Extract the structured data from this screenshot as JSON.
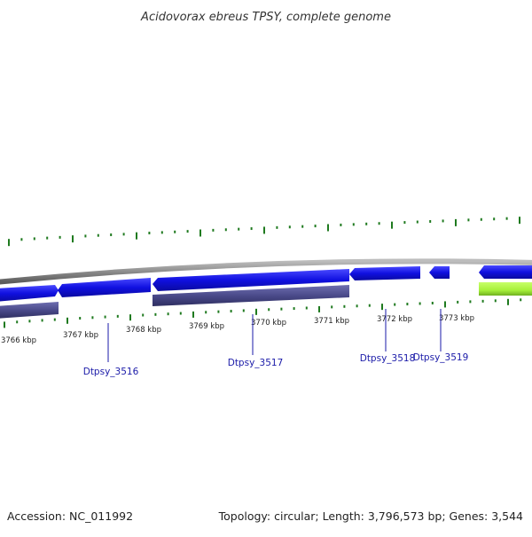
{
  "title": "Acidovorax ebreus TPSY, complete genome",
  "footer": {
    "accession": "Accession: NC_011992",
    "summary": "Topology: circular; Length: 3,796,573 bp; Genes: 3,544"
  },
  "colors": {
    "background": "#ffffff",
    "backbone": "#8c8c8c",
    "forward_gene": "#1010e0",
    "reverse_gene": "#4a4a8a",
    "highlight_gene": "#a6f03a",
    "tick": "#1f7a1f",
    "label_line": "#1a1aa8"
  },
  "scale_labels": [
    "3766 kbp",
    "3767 kbp",
    "3768 kbp",
    "3769 kbp",
    "3770 kbp",
    "3771 kbp",
    "3772 kbp",
    "3773 kbp"
  ],
  "genes": [
    {
      "name": "Dtpsy_3516"
    },
    {
      "name": "Dtpsy_3517"
    },
    {
      "name": "Dtpsy_3518"
    },
    {
      "name": "Dtpsy_3519"
    }
  ]
}
